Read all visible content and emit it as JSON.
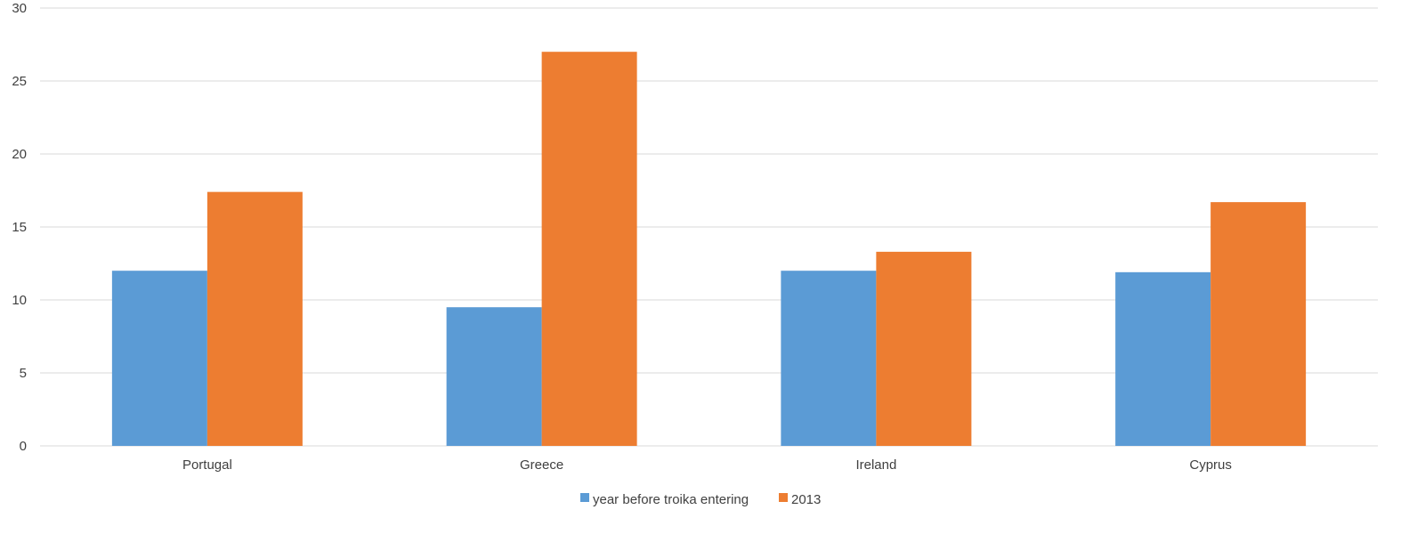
{
  "chart_data": {
    "type": "bar",
    "title": "",
    "xlabel": "",
    "ylabel": "",
    "categories": [
      "Portugal",
      "Greece",
      "Ireland",
      "Cyprus"
    ],
    "series": [
      {
        "name": "year before troika entering",
        "color": "#5b9bd5",
        "values": [
          12.0,
          9.5,
          12.0,
          11.9
        ]
      },
      {
        "name": "2013",
        "color": "#ed7d31",
        "values": [
          17.4,
          27.0,
          13.3,
          16.7
        ]
      }
    ],
    "ylim": [
      0,
      30
    ],
    "yticks": [
      "0",
      "5",
      "10",
      "15",
      "20",
      "25",
      "30"
    ],
    "grid": true,
    "legend_position": "bottom"
  }
}
